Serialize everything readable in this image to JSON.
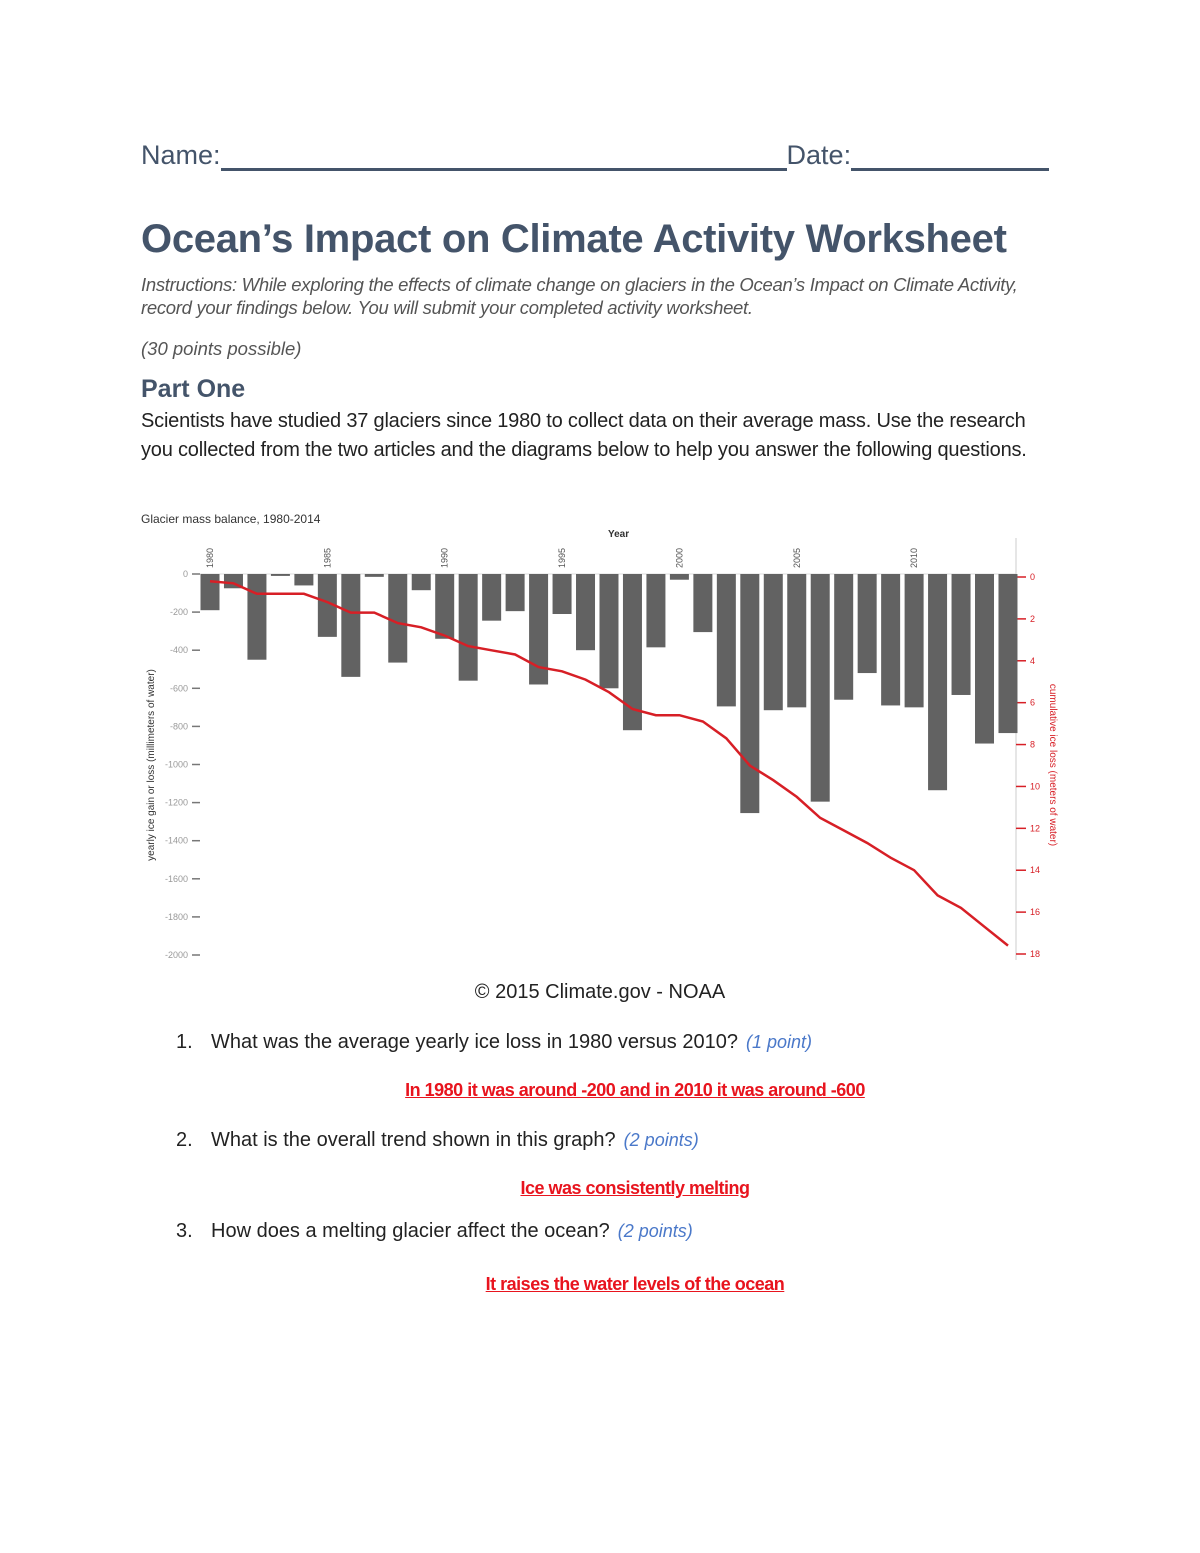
{
  "header": {
    "name_label": "Name:",
    "date_label": "Date:"
  },
  "title": "Ocean’s Impact on Climate Activity Worksheet",
  "instructions": "Instructions: While exploring the effects of climate change on glaciers in the Ocean’s Impact on Climate Activity, record your findings below. You will submit your completed activity worksheet.",
  "points_possible": "(30 points possible)",
  "part_one": {
    "heading": "Part One",
    "intro": "Scientists have studied 37 glaciers since 1980 to collect data on their average mass. Use the research you collected from the two articles and the diagrams below to help you answer the following questions."
  },
  "chart_data": {
    "type": "bar",
    "title": "Glacier mass balance, 1980-2014",
    "xlabel": "Year",
    "ylabel": "yearly ice gain or loss (millimeters of water)",
    "y2label": "cumulative ice loss (meters of water)",
    "x_tick_labels": [
      "1980",
      "1985",
      "1990",
      "1995",
      "2000",
      "2005",
      "2010"
    ],
    "y_tick_labels": [
      "0",
      "-200",
      "-400",
      "-600",
      "-800",
      "-1000",
      "-1200",
      "-1400",
      "-1600",
      "-1800",
      "-2000"
    ],
    "y2_tick_labels": [
      "0",
      "2",
      "4",
      "6",
      "8",
      "10",
      "12",
      "14",
      "16",
      "18"
    ],
    "ylim": [
      -2000,
      0
    ],
    "y2lim": [
      18,
      0
    ],
    "grid": false,
    "colors": {
      "bars": "#626262",
      "line": "#d71f26",
      "right_axis": "#d71f26"
    },
    "categories": [
      1980,
      1981,
      1982,
      1983,
      1984,
      1985,
      1986,
      1987,
      1988,
      1989,
      1990,
      1991,
      1992,
      1993,
      1994,
      1995,
      1996,
      1997,
      1998,
      1999,
      2000,
      2001,
      2002,
      2003,
      2004,
      2005,
      2006,
      2007,
      2008,
      2009,
      2010,
      2011,
      2012,
      2013,
      2014
    ],
    "series": [
      {
        "type": "bar",
        "axis": "left",
        "values": [
          -190,
          -75,
          -450,
          -10,
          -60,
          -330,
          -540,
          -15,
          -465,
          -85,
          -340,
          -560,
          -245,
          -195,
          -580,
          -210,
          -400,
          -600,
          -820,
          -385,
          -30,
          -305,
          -695,
          -1255,
          -715,
          -700,
          -1195,
          -660,
          -520,
          -690,
          -700,
          -1135,
          -635,
          -890,
          -835
        ]
      },
      {
        "type": "line",
        "axis": "right",
        "values": [
          0.2,
          0.3,
          0.8,
          0.8,
          0.8,
          1.2,
          1.7,
          1.7,
          2.2,
          2.4,
          2.8,
          3.3,
          3.5,
          3.7,
          4.3,
          4.5,
          4.9,
          5.5,
          6.3,
          6.6,
          6.6,
          6.9,
          7.7,
          9.0,
          9.7,
          10.5,
          11.5,
          12.1,
          12.7,
          13.4,
          14.0,
          15.2,
          15.8,
          16.7,
          17.6
        ]
      }
    ]
  },
  "credit": "© 2015 Climate.gov - NOAA",
  "questions": [
    {
      "number": "1.",
      "text": "What was the average yearly ice loss in 1980 versus 2010?",
      "points": "(1 point)",
      "answer": "In 1980 it was around -200 and in 2010 it was around -600"
    },
    {
      "number": "2.",
      "text": "What is the overall trend shown in this graph?",
      "points": "(2 points)",
      "answer": "Ice was consistently melting"
    },
    {
      "number": "3.",
      "text": "How does a melting glacier affect the ocean?",
      "points": "(2 points)",
      "answer": "It raises the water levels of the ocean"
    }
  ]
}
